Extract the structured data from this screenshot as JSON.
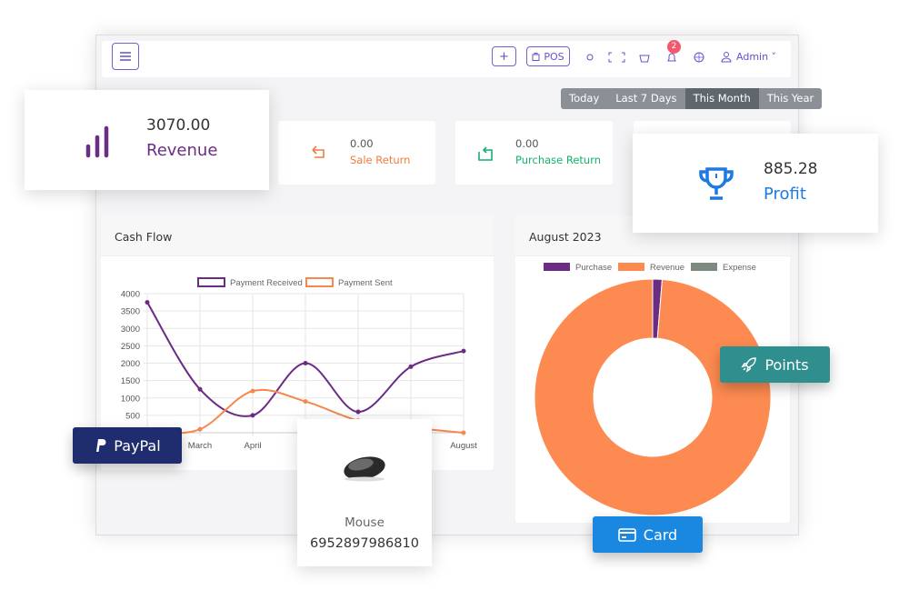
{
  "topbar": {
    "add_button": "+",
    "pos_button": "POS",
    "notification_count": "2",
    "user": "Admin"
  },
  "date_filters": [
    "Today",
    "Last 7 Days",
    "This Month",
    "This Year"
  ],
  "stats": {
    "revenue": {
      "value": "3070.00",
      "label": "Revenue"
    },
    "sale_return": {
      "value": "0.00",
      "label": "Sale Return"
    },
    "purchase_return": {
      "value": "0.00",
      "label": "Purchase Return"
    },
    "profit": {
      "value": "885.28",
      "label": "Profit"
    }
  },
  "cash_flow": {
    "type": "line",
    "title": "Cash Flow",
    "categories": [
      null,
      "March",
      "April",
      null,
      null,
      null,
      "August"
    ],
    "series": [
      {
        "name": "Payment Received",
        "color": "#6b2c84",
        "values": [
          3750,
          1250,
          500,
          2000,
          600,
          1900,
          2350
        ]
      },
      {
        "name": "Payment Sent",
        "color": "#f5874f",
        "values": [
          0,
          100,
          1200,
          900,
          350,
          150,
          0
        ]
      }
    ],
    "ylim": [
      0,
      4000
    ],
    "yticks": [
      500,
      1000,
      1500,
      2000,
      2500,
      3000,
      3500,
      4000
    ],
    "grid": true
  },
  "monthly": {
    "type": "doughnut",
    "title": "August 2023",
    "categories": [
      "Purchase",
      "Revenue",
      "Expense"
    ],
    "values": [
      40,
      3070,
      0
    ],
    "colors": [
      "#6b2c84",
      "#fd8a50",
      "#7d8a80"
    ]
  },
  "badges": {
    "paypal": "PayPal",
    "points": "Points",
    "card": "Card"
  },
  "product": {
    "name": "Mouse",
    "code": "6952897986810"
  }
}
